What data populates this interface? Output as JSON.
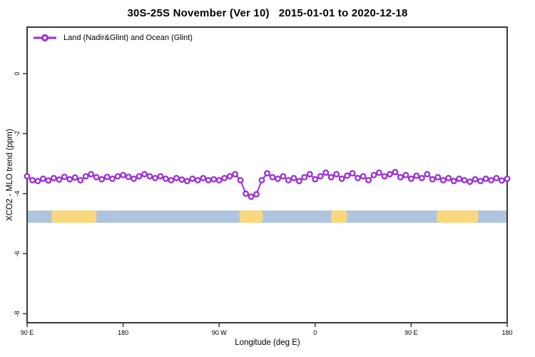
{
  "title": "30S-25S November (Ver 10)   2015-01-01 to 2020-12-18",
  "legend": {
    "label": "Land (Nadir&Glint) and Ocean (Glint)",
    "marker_icon": "open-circle-on-line",
    "marker_color": "#9A2FD8"
  },
  "colors": {
    "series": "#9A2FD8",
    "marker_fill": "#ffffff",
    "axis": "#3a3a3a",
    "ocean_band": "#AFC4DF",
    "land_band": "#FBD87D",
    "background": "#ffffff"
  },
  "chart_data": {
    "type": "line",
    "title": "30S-25S November (Ver 10)   2015-01-01 to 2020-12-18",
    "xlabel": "Longitude (deg E)",
    "ylabel": "XCO2 - MLO trend (ppm)",
    "xlim": [
      90,
      540
    ],
    "ylim": [
      -8.3,
      1.55
    ],
    "grid": false,
    "legend_position": "top-left-inside",
    "x_ticks": [
      {
        "value": 90,
        "label": "90 E"
      },
      {
        "value": 180,
        "label": "180"
      },
      {
        "value": 270,
        "label": "90 W"
      },
      {
        "value": 360,
        "label": "0"
      },
      {
        "value": 450,
        "label": "90 E"
      },
      {
        "value": 540,
        "label": "180"
      }
    ],
    "y_ticks": [
      {
        "value": 0,
        "label": "0"
      },
      {
        "value": -2,
        "label": "-2"
      },
      {
        "value": -4,
        "label": "-4"
      },
      {
        "value": -6,
        "label": "-6"
      },
      {
        "value": -8,
        "label": "-8"
      }
    ],
    "surface_band": {
      "description": "land/ocean indicator strip along longitude",
      "y_top": -4.56,
      "y_bottom": -4.97,
      "ocean_color": "#AFC4DF",
      "land_color": "#FBD87D",
      "ocean_range": [
        90,
        540
      ],
      "land_segments": [
        [
          113,
          155
        ],
        [
          289,
          311
        ],
        [
          375,
          390
        ],
        [
          474,
          513
        ]
      ]
    },
    "series": [
      {
        "name": "Land (Nadir&Glint) and Ocean (Glint)",
        "color": "#9A2FD8",
        "marker": "open-circle",
        "x": [
          90,
          95,
          100,
          105,
          110,
          115,
          120,
          125,
          130,
          135,
          140,
          145,
          150,
          155,
          160,
          165,
          170,
          175,
          180,
          185,
          190,
          195,
          200,
          205,
          210,
          215,
          220,
          225,
          230,
          235,
          240,
          245,
          250,
          255,
          260,
          265,
          270,
          275,
          280,
          285,
          290,
          295,
          300,
          305,
          310,
          315,
          320,
          325,
          330,
          335,
          340,
          345,
          350,
          355,
          360,
          365,
          370,
          375,
          380,
          385,
          390,
          395,
          400,
          405,
          410,
          415,
          420,
          425,
          430,
          435,
          440,
          445,
          450,
          455,
          460,
          465,
          470,
          475,
          480,
          485,
          490,
          495,
          500,
          505,
          510,
          515,
          520,
          525,
          530,
          535,
          540
        ],
        "y": [
          -3.42,
          -3.55,
          -3.58,
          -3.5,
          -3.56,
          -3.48,
          -3.53,
          -3.44,
          -3.52,
          -3.46,
          -3.55,
          -3.42,
          -3.35,
          -3.45,
          -3.52,
          -3.44,
          -3.5,
          -3.42,
          -3.38,
          -3.44,
          -3.5,
          -3.42,
          -3.35,
          -3.42,
          -3.48,
          -3.42,
          -3.5,
          -3.55,
          -3.48,
          -3.53,
          -3.58,
          -3.5,
          -3.55,
          -3.48,
          -3.55,
          -3.52,
          -3.55,
          -3.48,
          -3.42,
          -3.35,
          -3.55,
          -4.0,
          -4.1,
          -4.02,
          -3.55,
          -3.32,
          -3.45,
          -3.5,
          -3.42,
          -3.55,
          -3.48,
          -3.58,
          -3.45,
          -3.35,
          -3.52,
          -3.42,
          -3.3,
          -3.45,
          -3.35,
          -3.5,
          -3.4,
          -3.32,
          -3.48,
          -3.42,
          -3.55,
          -3.38,
          -3.3,
          -3.42,
          -3.35,
          -3.28,
          -3.45,
          -3.38,
          -3.5,
          -3.4,
          -3.48,
          -3.35,
          -3.52,
          -3.45,
          -3.55,
          -3.48,
          -3.58,
          -3.5,
          -3.55,
          -3.6,
          -3.52,
          -3.58,
          -3.5,
          -3.55,
          -3.48,
          -3.56,
          -3.5
        ]
      }
    ]
  }
}
